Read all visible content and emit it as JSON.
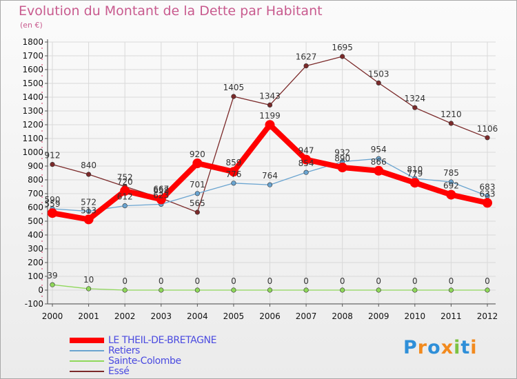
{
  "title": "Evolution du Montant de la Dette par Habitant",
  "subtitle": "(en €)",
  "logo": {
    "text": "Proxiti",
    "colors": [
      "#2f8fd8",
      "#f28a1e",
      "#2f8fd8",
      "#f28a1e",
      "#7cc242",
      "#2f8fd8",
      "#f28a1e"
    ]
  },
  "chart_data": {
    "type": "line",
    "title": "Evolution du Montant de la Dette par Habitant",
    "ylabel": "(en €)",
    "xlabel": "",
    "x": [
      "2000",
      "2001",
      "2002",
      "2003",
      "2004",
      "2005",
      "2006",
      "2007",
      "2008",
      "2009",
      "2010",
      "2011",
      "2012"
    ],
    "ylim": [
      -100,
      1800
    ],
    "yticks": [
      -100,
      0,
      100,
      200,
      300,
      400,
      500,
      600,
      700,
      800,
      900,
      1000,
      1100,
      1200,
      1300,
      1400,
      1500,
      1600,
      1700,
      1800
    ],
    "grid": true,
    "legend": "bottom-left",
    "series": [
      {
        "name": "Essé",
        "color": "#7b2a2a",
        "values": [
          912,
          840,
          752,
          667,
          565,
          1405,
          1343,
          1627,
          1695,
          1503,
          1324,
          1210,
          1106
        ]
      },
      {
        "name": "Retiers",
        "color": "#6aa4d0",
        "values": [
          590,
          572,
          612,
          623,
          701,
          776,
          764,
          854,
          932,
          954,
          810,
          785,
          683
        ]
      },
      {
        "name": "Sainte-Colombe",
        "color": "#8fd85a",
        "values": [
          39,
          10,
          0,
          0,
          0,
          0,
          0,
          0,
          0,
          0,
          0,
          0,
          0
        ]
      },
      {
        "name": "LE THEIL-DE-BRETAGNE",
        "color": "#ff0000",
        "values": [
          559,
          513,
          720,
          658,
          920,
          859,
          1199,
          947,
          890,
          866,
          779,
          692,
          633
        ]
      }
    ]
  }
}
